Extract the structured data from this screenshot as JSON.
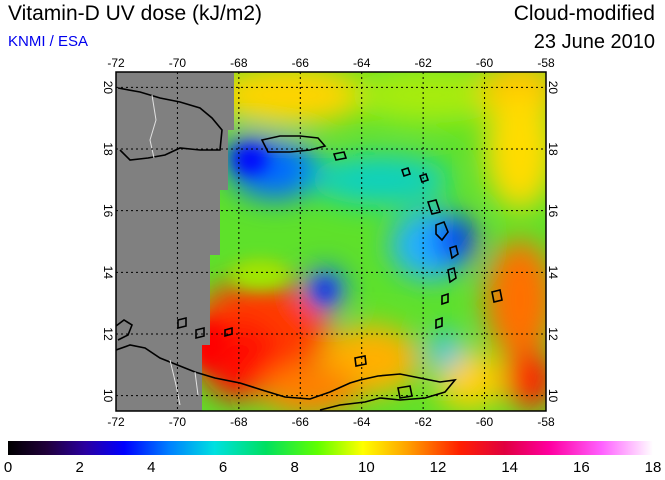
{
  "header": {
    "title": "Vitamin-D UV dose (kJ/m2)",
    "credit": "KNMI / ESA",
    "subtitle": "Cloud-modified",
    "date": "23 June 2010"
  },
  "map": {
    "lon_range": [
      -72,
      -58
    ],
    "lat_range": [
      9.5,
      20.5
    ],
    "lon_ticks": [
      "-72",
      "-70",
      "-68",
      "-66",
      "-64",
      "-62",
      "-60",
      "-58"
    ],
    "lat_ticks": [
      "10",
      "12",
      "14",
      "16",
      "18",
      "20"
    ],
    "no_data_color": "#808080",
    "grid": "dotted"
  },
  "colorbar": {
    "range": [
      0,
      18
    ],
    "labels": [
      "0",
      "2",
      "4",
      "6",
      "8",
      "10",
      "12",
      "14",
      "16",
      "18"
    ]
  }
}
